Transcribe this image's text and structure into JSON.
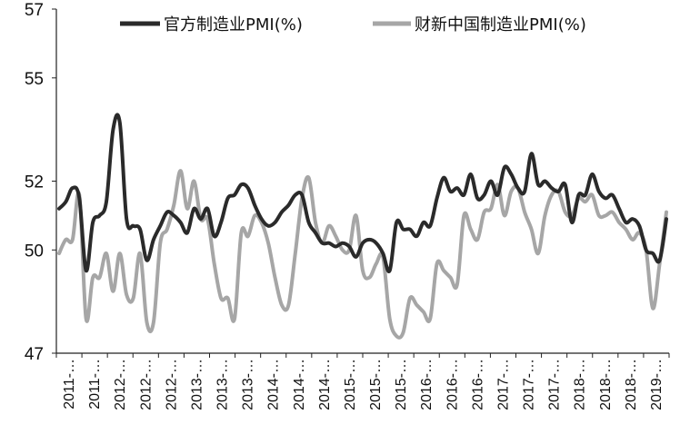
{
  "chart_data": {
    "type": "line",
    "title": "",
    "xlabel": "",
    "ylabel": "",
    "ylim": [
      47,
      57
    ],
    "yticks": [
      47,
      50,
      52,
      55,
      57
    ],
    "grid": false,
    "legend_position": "top",
    "x_tick_labels": [
      "2011-…",
      "2011-…",
      "2012-…",
      "2012-…",
      "2012-…",
      "2013-…",
      "2013-…",
      "2013-…",
      "2014-…",
      "2014-…",
      "2014-…",
      "2015-…",
      "2015-…",
      "2015-…",
      "2016-…",
      "2016-…",
      "2016-…",
      "2017-…",
      "2017-…",
      "2017-…",
      "2018-…",
      "2018-…",
      "2018-…",
      "2019-…"
    ],
    "series": [
      {
        "name": "官方制造业PMI(%)",
        "color": "#2a2a2a",
        "values": [
          51.2,
          51.4,
          51.8,
          51.5,
          49.4,
          50.8,
          51.0,
          51.4,
          53.5,
          53.7,
          50.9,
          50.7,
          50.6,
          49.7,
          50.3,
          50.7,
          51.1,
          51.0,
          50.8,
          50.5,
          51.2,
          50.9,
          51.2,
          50.4,
          50.8,
          51.5,
          51.6,
          51.9,
          51.8,
          51.3,
          50.9,
          50.7,
          50.8,
          51.1,
          51.3,
          51.6,
          51.6,
          50.8,
          50.5,
          50.2,
          50.2,
          50.1,
          50.2,
          50.1,
          49.8,
          50.2,
          50.3,
          50.2,
          49.9,
          49.4,
          50.8,
          50.6,
          50.6,
          50.4,
          50.8,
          50.7,
          51.5,
          52.1,
          51.7,
          51.8,
          51.6,
          52.2,
          51.5,
          51.6,
          52.0,
          51.6,
          52.4,
          52.2,
          51.8,
          51.7,
          52.8,
          51.9,
          52.0,
          51.8,
          51.7,
          51.9,
          50.8,
          51.6,
          51.6,
          52.2,
          51.7,
          51.5,
          51.6,
          51.2,
          50.8,
          50.9,
          50.7,
          50.0,
          49.9,
          49.7,
          50.9
        ]
      },
      {
        "name": "财新中国制造业PMI(%)",
        "color": "#a6a6a6",
        "values": [
          49.9,
          50.3,
          50.3,
          51.6,
          48.0,
          49.2,
          49.2,
          49.9,
          48.8,
          49.9,
          48.7,
          48.6,
          49.9,
          47.9,
          47.9,
          50.2,
          50.6,
          51.3,
          52.3,
          51.2,
          52.0,
          50.9,
          50.9,
          49.6,
          48.6,
          48.6,
          48.0,
          50.5,
          50.4,
          51.0,
          50.8,
          50.2,
          49.2,
          48.4,
          48.4,
          49.9,
          51.5,
          52.1,
          50.8,
          50.2,
          50.7,
          50.4,
          50.0,
          50.0,
          51.0,
          49.4,
          49.2,
          49.6,
          49.8,
          48.0,
          47.5,
          47.6,
          48.6,
          48.4,
          48.2,
          48.0,
          49.6,
          49.4,
          49.2,
          49.0,
          51.0,
          50.6,
          50.3,
          51.1,
          51.2,
          51.9,
          51.0,
          51.7,
          51.8,
          51.1,
          50.6,
          49.9,
          51.0,
          51.6,
          51.7,
          51.1,
          51.0,
          51.5,
          51.4,
          51.6,
          51.0,
          51.0,
          51.1,
          50.8,
          50.6,
          50.3,
          50.5,
          50.0,
          48.3,
          49.6,
          51.1
        ]
      }
    ]
  }
}
